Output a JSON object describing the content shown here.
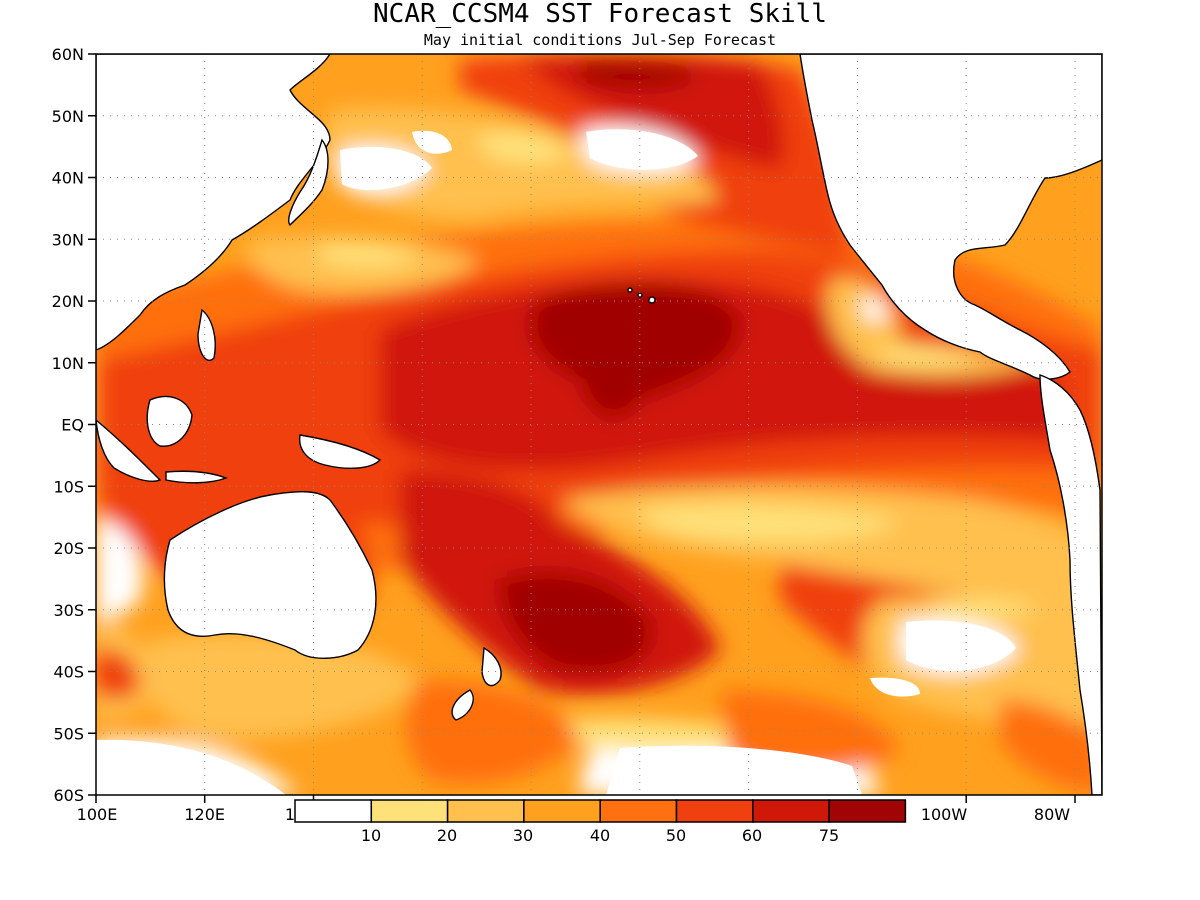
{
  "title": "NCAR_CCSM4 SST Forecast Skill",
  "subtitle": "May initial conditions  Jul-Sep Forecast",
  "map": {
    "lon_range": [
      100,
      285
    ],
    "lat_range": [
      -60,
      60
    ],
    "y_ticks": [
      "60N",
      "50N",
      "40N",
      "30N",
      "20N",
      "10N",
      "EQ",
      "10S",
      "20S",
      "30S",
      "40S",
      "50S",
      "60S"
    ],
    "x_ticks_left": [
      "100E",
      "120E"
    ],
    "x_ticks_right": [
      "100W",
      "80W"
    ],
    "x_tick_partial": "1",
    "grid": "dotted"
  },
  "colorbar": {
    "colors": [
      "#ffffff",
      "#ffe17a",
      "#ffc04d",
      "#ffa01e",
      "#ff7010",
      "#f04010",
      "#d01808",
      "#a00404"
    ],
    "labels": [
      "10",
      "20",
      "30",
      "40",
      "50",
      "60",
      "75"
    ]
  },
  "legend_values": {
    "bins": [
      "<10",
      "10-20",
      "20-30",
      "30-40",
      "40-50",
      "50-60",
      "60-75",
      ">75"
    ]
  }
}
